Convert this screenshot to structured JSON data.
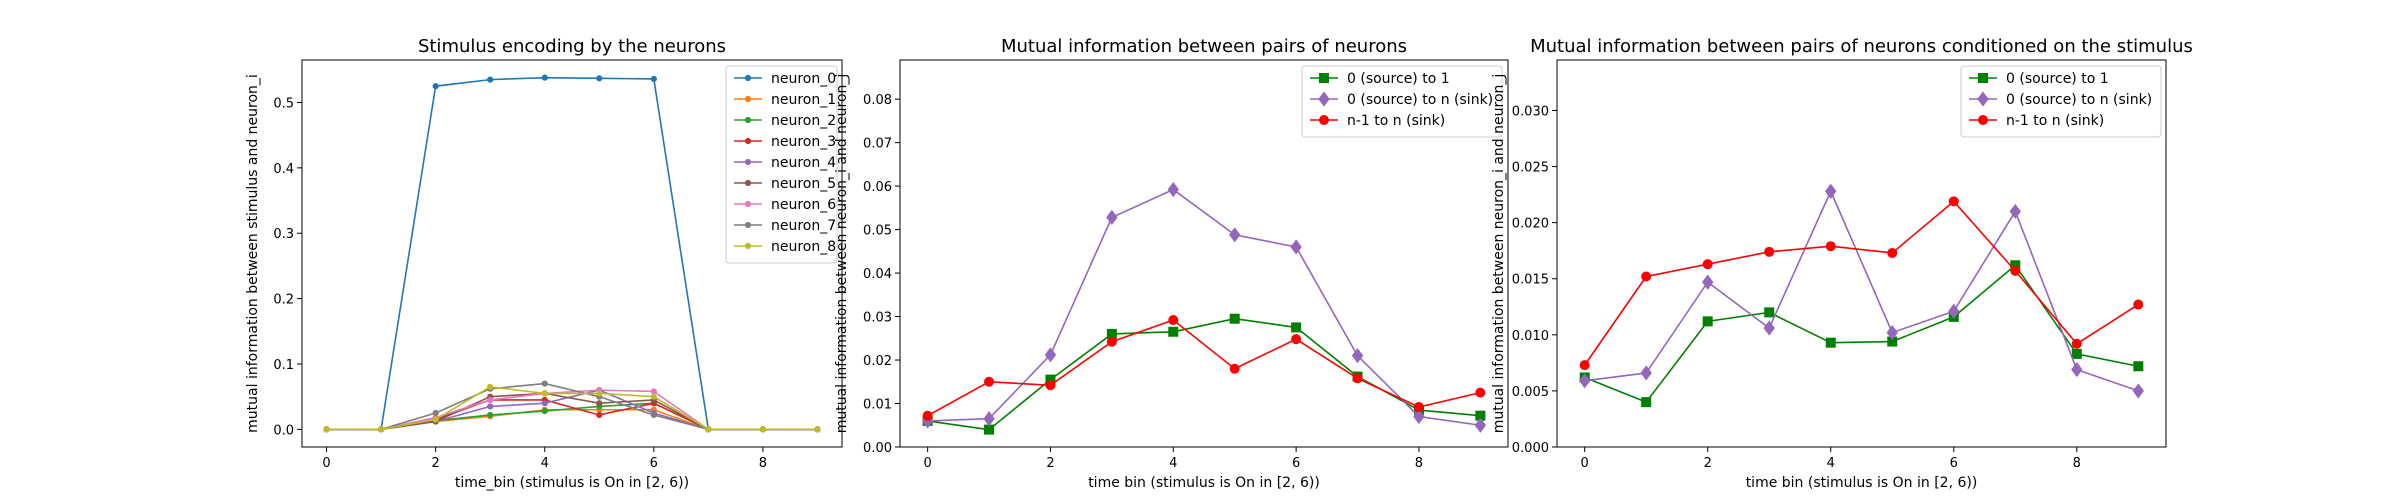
{
  "chart_data": [
    {
      "type": "line",
      "title": "Stimulus encoding by the neurons",
      "xlabel": "time_bin (stimulus is On in [2, 6))",
      "ylabel": "mutual information between stimulus and neuron_i",
      "x": [
        0,
        1,
        2,
        3,
        4,
        5,
        6,
        7,
        8,
        9
      ],
      "xlim": [
        -0.45,
        9.45
      ],
      "ylim": [
        -0.027,
        0.565
      ],
      "xticks": [
        0,
        2,
        4,
        6,
        8
      ],
      "yticks": [
        0.0,
        0.1,
        0.2,
        0.3,
        0.4,
        0.5
      ],
      "yticklabels": [
        "0.0",
        "0.1",
        "0.2",
        "0.3",
        "0.4",
        "0.5"
      ],
      "legend_position": "top-right",
      "series": [
        {
          "name": "neuron_0",
          "color": "#1f77b4",
          "marker": "dot",
          "values": [
            0,
            0,
            0.525,
            0.535,
            0.538,
            0.537,
            0.536,
            0,
            0,
            0
          ]
        },
        {
          "name": "neuron_1",
          "color": "#ff7f0e",
          "marker": "dot",
          "values": [
            0,
            0,
            0.012,
            0.02,
            0.03,
            0.03,
            0.03,
            0,
            0,
            0
          ]
        },
        {
          "name": "neuron_2",
          "color": "#2ca02c",
          "marker": "dot",
          "values": [
            0,
            0,
            0.013,
            0.022,
            0.028,
            0.035,
            0.04,
            0,
            0,
            0
          ]
        },
        {
          "name": "neuron_3",
          "color": "#d62728",
          "marker": "dot",
          "values": [
            0,
            0,
            0.015,
            0.045,
            0.045,
            0.022,
            0.04,
            0,
            0,
            0
          ]
        },
        {
          "name": "neuron_4",
          "color": "#9467bd",
          "marker": "dot",
          "values": [
            0,
            0,
            0.012,
            0.035,
            0.04,
            0.06,
            0.025,
            0,
            0,
            0
          ]
        },
        {
          "name": "neuron_5",
          "color": "#8c564b",
          "marker": "dot",
          "values": [
            0,
            0,
            0.012,
            0.05,
            0.055,
            0.04,
            0.045,
            0,
            0,
            0
          ]
        },
        {
          "name": "neuron_6",
          "color": "#e377c2",
          "marker": "dot",
          "values": [
            0,
            0,
            0.018,
            0.045,
            0.055,
            0.06,
            0.058,
            0,
            0,
            0
          ]
        },
        {
          "name": "neuron_7",
          "color": "#7f7f7f",
          "marker": "dot",
          "values": [
            0,
            0,
            0.025,
            0.062,
            0.07,
            0.05,
            0.022,
            0,
            0,
            0
          ]
        },
        {
          "name": "neuron_8",
          "color": "#bcbd22",
          "marker": "dot",
          "values": [
            0,
            0,
            0.015,
            0.065,
            0.055,
            0.055,
            0.05,
            0,
            0,
            0
          ]
        }
      ]
    },
    {
      "type": "line",
      "title": "Mutual information between pairs of neurons",
      "xlabel": "time bin (stimulus is On in [2, 6))",
      "ylabel": "mutual information between neuron_i and neuron_j",
      "x": [
        0,
        1,
        2,
        3,
        4,
        5,
        6,
        7,
        8,
        9
      ],
      "xlim": [
        -0.45,
        9.45
      ],
      "ylim": [
        0.0,
        0.089
      ],
      "xticks": [
        0,
        2,
        4,
        6,
        8
      ],
      "yticks": [
        0.0,
        0.01,
        0.02,
        0.03,
        0.04,
        0.05,
        0.06,
        0.07,
        0.08
      ],
      "yticklabels": [
        "0.00",
        "0.01",
        "0.02",
        "0.03",
        "0.04",
        "0.05",
        "0.06",
        "0.07",
        "0.08"
      ],
      "legend_position": "top-right",
      "series": [
        {
          "name": "0 (source) to 1",
          "color": "#008000",
          "marker": "square",
          "values": [
            0.006,
            0.004,
            0.0155,
            0.026,
            0.0265,
            0.0295,
            0.0275,
            0.0162,
            0.0085,
            0.0072
          ]
        },
        {
          "name": "0 (source) to n (sink)",
          "color": "#9467bd",
          "marker": "diamond",
          "values": [
            0.006,
            0.0065,
            0.0212,
            0.0528,
            0.0592,
            0.0488,
            0.046,
            0.021,
            0.007,
            0.005
          ]
        },
        {
          "name": "n-1 to n (sink)",
          "color": "#ff0000",
          "marker": "circle",
          "values": [
            0.0072,
            0.015,
            0.0142,
            0.0242,
            0.0292,
            0.018,
            0.0248,
            0.0158,
            0.0092,
            0.0125
          ]
        }
      ]
    },
    {
      "type": "line",
      "title": "Mutual information between pairs of neurons conditioned on the stimulus",
      "xlabel": "time bin (stimulus is On in [2, 6))",
      "ylabel": "mutual information between neuron_i and neuron_j",
      "x": [
        0,
        1,
        2,
        3,
        4,
        5,
        6,
        7,
        8,
        9
      ],
      "xlim": [
        -0.45,
        9.45
      ],
      "ylim": [
        0.0,
        0.0345
      ],
      "xticks": [
        0,
        2,
        4,
        6,
        8
      ],
      "yticks": [
        0.0,
        0.005,
        0.01,
        0.015,
        0.02,
        0.025,
        0.03
      ],
      "yticklabels": [
        "0.000",
        "0.005",
        "0.010",
        "0.015",
        "0.020",
        "0.025",
        "0.030"
      ],
      "legend_position": "top-right",
      "series": [
        {
          "name": "0 (source) to 1",
          "color": "#008000",
          "marker": "square",
          "values": [
            0.0062,
            0.004,
            0.0112,
            0.012,
            0.0093,
            0.0094,
            0.0116,
            0.0162,
            0.0083,
            0.0072
          ]
        },
        {
          "name": "0 (source) to n (sink)",
          "color": "#9467bd",
          "marker": "diamond",
          "values": [
            0.0059,
            0.0066,
            0.0147,
            0.0106,
            0.0228,
            0.0102,
            0.0121,
            0.021,
            0.0069,
            0.005
          ]
        },
        {
          "name": "n-1 to n (sink)",
          "color": "#ff0000",
          "marker": "circle",
          "values": [
            0.0073,
            0.0152,
            0.0163,
            0.0174,
            0.0179,
            0.0173,
            0.0219,
            0.0157,
            0.0092,
            0.0127
          ]
        }
      ]
    }
  ]
}
